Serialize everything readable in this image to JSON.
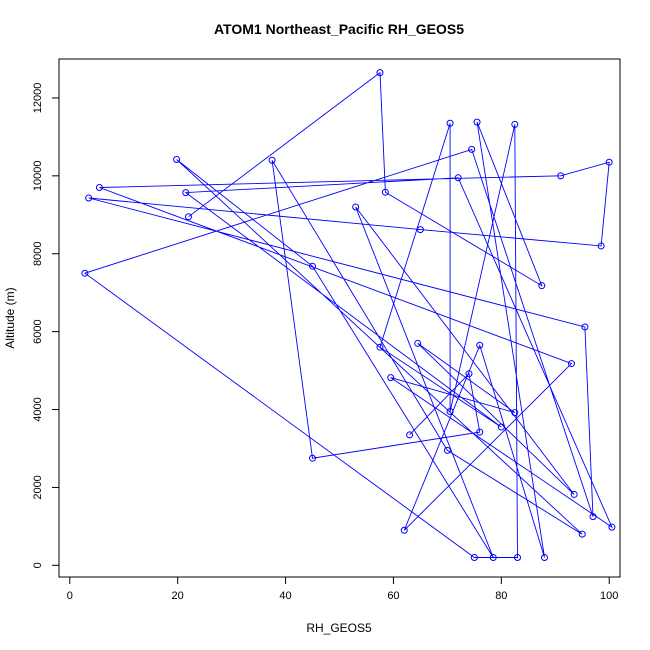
{
  "chart_data": {
    "type": "line",
    "title": "ATOM1 Northeast_Pacific RH_GEOS5",
    "xlabel": "RH_GEOS5",
    "ylabel": "Altitude (m)",
    "xlim": [
      -2,
      102
    ],
    "ylim": [
      -300,
      13000
    ],
    "xticks": [
      0,
      20,
      40,
      60,
      80,
      100
    ],
    "yticks": [
      0,
      2000,
      4000,
      6000,
      8000,
      10000,
      12000
    ],
    "grid": false,
    "color": "#0000ff",
    "marker": "open-circle",
    "series": [
      {
        "points": [
          [
            22,
            8950
          ],
          [
            57.5,
            12650
          ],
          [
            58.5,
            9580
          ],
          [
            87.5,
            7180
          ],
          [
            75.5,
            11380
          ],
          [
            88,
            200
          ],
          [
            76,
            5650
          ],
          [
            62,
            900
          ],
          [
            93,
            5180
          ],
          [
            5.5,
            9700
          ],
          [
            91,
            10000
          ],
          [
            100,
            10350
          ],
          [
            98.5,
            8200
          ],
          [
            65,
            8620
          ],
          [
            3.5,
            9430
          ],
          [
            95.5,
            6120
          ],
          [
            97,
            1250
          ],
          [
            74.5,
            10680
          ],
          [
            2.8,
            7500
          ],
          [
            75,
            200
          ],
          [
            83,
            200
          ],
          [
            82.5,
            11320
          ],
          [
            70.5,
            3950
          ],
          [
            70.5,
            11350
          ],
          [
            57.5,
            5600
          ],
          [
            80,
            3550
          ],
          [
            21.5,
            9570
          ],
          [
            72,
            9950
          ],
          [
            100.5,
            980
          ],
          [
            59.5,
            4820
          ],
          [
            82.5,
            3920
          ],
          [
            64.5,
            5700
          ],
          [
            93.5,
            1820
          ],
          [
            53,
            9200
          ],
          [
            78.5,
            200
          ],
          [
            45,
            7680
          ],
          [
            19.8,
            10420
          ],
          [
            95,
            800
          ],
          [
            70,
            2950
          ],
          [
            37.5,
            10400
          ],
          [
            45,
            2750
          ],
          [
            76,
            3420
          ],
          [
            74,
            4920
          ],
          [
            63,
            3350
          ]
        ]
      }
    ]
  }
}
